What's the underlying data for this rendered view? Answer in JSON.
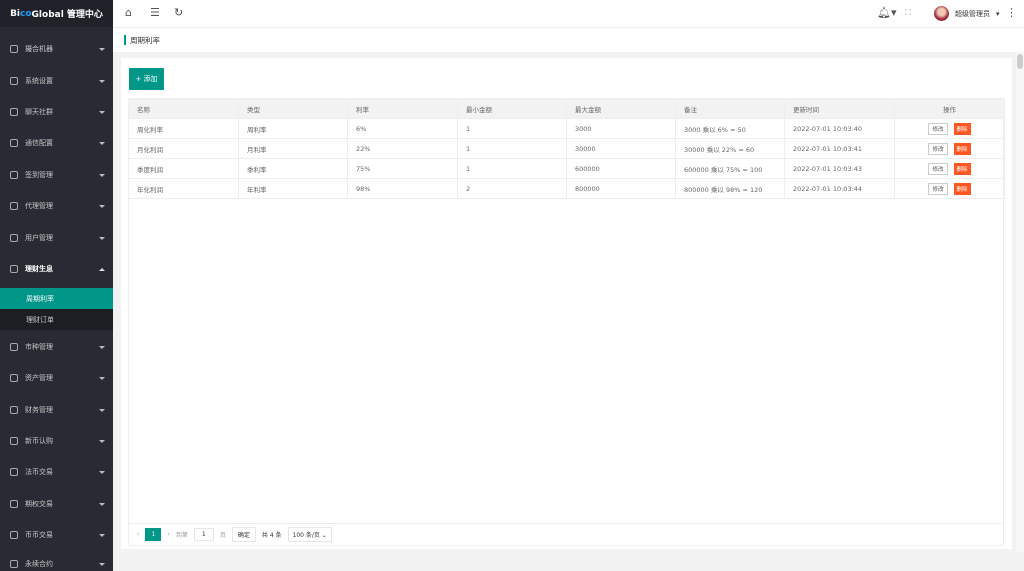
{
  "logo": {
    "part1": "Bi",
    "part2": "co",
    "part3": " Global 管理中心"
  },
  "sidebar": {
    "items": [
      {
        "label": "撮合机器",
        "icon": "robot-icon"
      },
      {
        "label": "系统设置",
        "icon": "sliders-icon"
      },
      {
        "label": "聊天社群",
        "icon": "chat-icon"
      },
      {
        "label": "通信配置",
        "icon": "tablet-icon"
      },
      {
        "label": "签到管理",
        "icon": "sign-icon"
      },
      {
        "label": "代理管理",
        "icon": "user-icon"
      },
      {
        "label": "用户管理",
        "icon": "users-icon"
      },
      {
        "label": "理财生息",
        "icon": "star-icon",
        "expanded": true
      },
      {
        "label": "市种管理",
        "icon": "coin-icon"
      },
      {
        "label": "资产管理",
        "icon": "dollar-icon"
      },
      {
        "label": "财务管理",
        "icon": "finance-icon"
      },
      {
        "label": "新币认购",
        "icon": "clock-icon"
      },
      {
        "label": "法币交易",
        "icon": "hand-icon"
      },
      {
        "label": "期权交易",
        "icon": "star-icon"
      },
      {
        "label": "币币交易",
        "icon": "exchange-icon"
      },
      {
        "label": "永续合约",
        "icon": "file-icon"
      }
    ],
    "subitems": [
      {
        "label": "周期利率",
        "active": true
      },
      {
        "label": "理财订单"
      }
    ]
  },
  "header": {
    "user": "超级管理员"
  },
  "tab": {
    "title": "周期利率"
  },
  "toolbar": {
    "add_label": "+ 添加"
  },
  "table": {
    "columns": [
      "名称",
      "类型",
      "利率",
      "最小金额",
      "最大金额",
      "备注",
      "更新时间",
      "操作"
    ],
    "rows": [
      [
        "周化利率",
        "周利率",
        "6%",
        "1",
        "3000",
        "3000 乘以 6% = 50",
        "2022-07-01 10:03:40"
      ],
      [
        "月化利润",
        "月利率",
        "22%",
        "1",
        "30000",
        "30000 乘以 22% = 60",
        "2022-07-01 10:03:41"
      ],
      [
        "季度利润",
        "季利率",
        "75%",
        "1",
        "600000",
        "600000 乘以 75% = 100",
        "2022-07-01 10:03:43"
      ],
      [
        "年化利润",
        "年利率",
        "98%",
        "2",
        "800000",
        "800000 乘以 98% = 120",
        "2022-07-01 10:03:44"
      ]
    ],
    "edit_label": "修改",
    "delete_label": "删除"
  },
  "pager": {
    "current": "1",
    "goto_label": "到第",
    "page_input": "1",
    "page_unit": "页",
    "confirm": "确定",
    "total": "共 4 条",
    "page_size": "100 条/页"
  },
  "colors": {
    "sidebar": "#282b33",
    "accent": "#009688",
    "danger": "#ff5722"
  }
}
